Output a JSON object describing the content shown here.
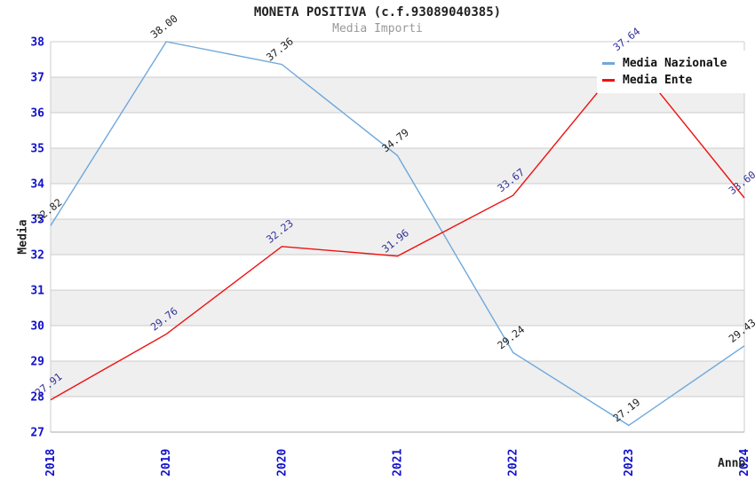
{
  "header": {
    "title": "MONETA POSITIVA (c.f.93089040385)",
    "subtitle": "Media Importi"
  },
  "chart_data": {
    "type": "line",
    "x": [
      "2018",
      "2019",
      "2020",
      "2021",
      "2022",
      "2023",
      "2024"
    ],
    "series": [
      {
        "name": "Media Nazionale",
        "color": "#6FA8DC",
        "label_color": "#222222",
        "values": [
          32.82,
          38.0,
          37.36,
          34.79,
          29.24,
          27.19,
          29.43
        ]
      },
      {
        "name": "Media Ente",
        "color": "#EE1111",
        "label_color": "#333399",
        "values": [
          27.91,
          29.76,
          32.23,
          31.96,
          33.67,
          37.64,
          33.6
        ]
      }
    ],
    "title": "MONETA POSITIVA (c.f.93089040385)",
    "subtitle": "Media Importi",
    "xlabel": "Anno",
    "ylabel": "Media",
    "ylim": [
      27,
      38
    ],
    "ytick_step": 1,
    "grid": true,
    "legend_position": "top-right",
    "colors": {
      "tick": "#1111CC",
      "grid": "#CCCCCC",
      "frame": "#AAAAAA",
      "band": "#EFEFEF",
      "background": "#FFFFFF"
    }
  }
}
